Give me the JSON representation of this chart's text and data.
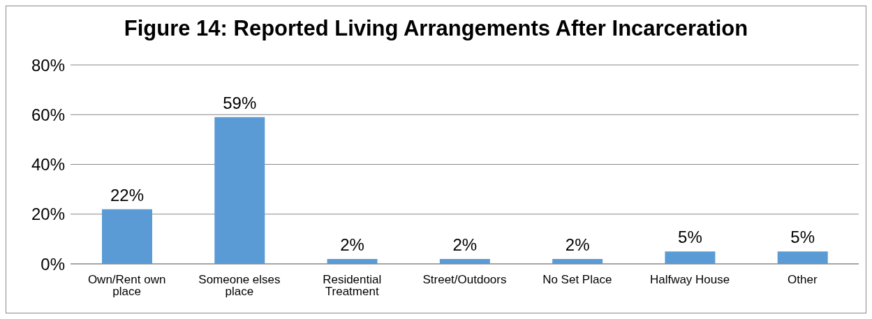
{
  "chart_data": {
    "type": "bar",
    "title": "Figure 14: Reported Living Arrangements After Incarceration",
    "categories": [
      "Own/Rent own place",
      "Someone elses place",
      "Residential Treatment",
      "Street/Outdoors",
      "No Set Place",
      "Halfway House",
      "Other"
    ],
    "values": [
      22,
      59,
      2,
      2,
      2,
      5,
      5
    ],
    "value_labels": [
      "22%",
      "59%",
      "2%",
      "2%",
      "2%",
      "5%",
      "5%"
    ],
    "color": "#5b9bd5",
    "ylim": [
      0,
      80
    ],
    "yticks": [
      {
        "value": 0,
        "label": "0%"
      },
      {
        "value": 20,
        "label": "20%"
      },
      {
        "value": 40,
        "label": "40%"
      },
      {
        "value": 60,
        "label": "60%"
      },
      {
        "value": 80,
        "label": "80%"
      }
    ],
    "grid": "y",
    "legend": false
  }
}
